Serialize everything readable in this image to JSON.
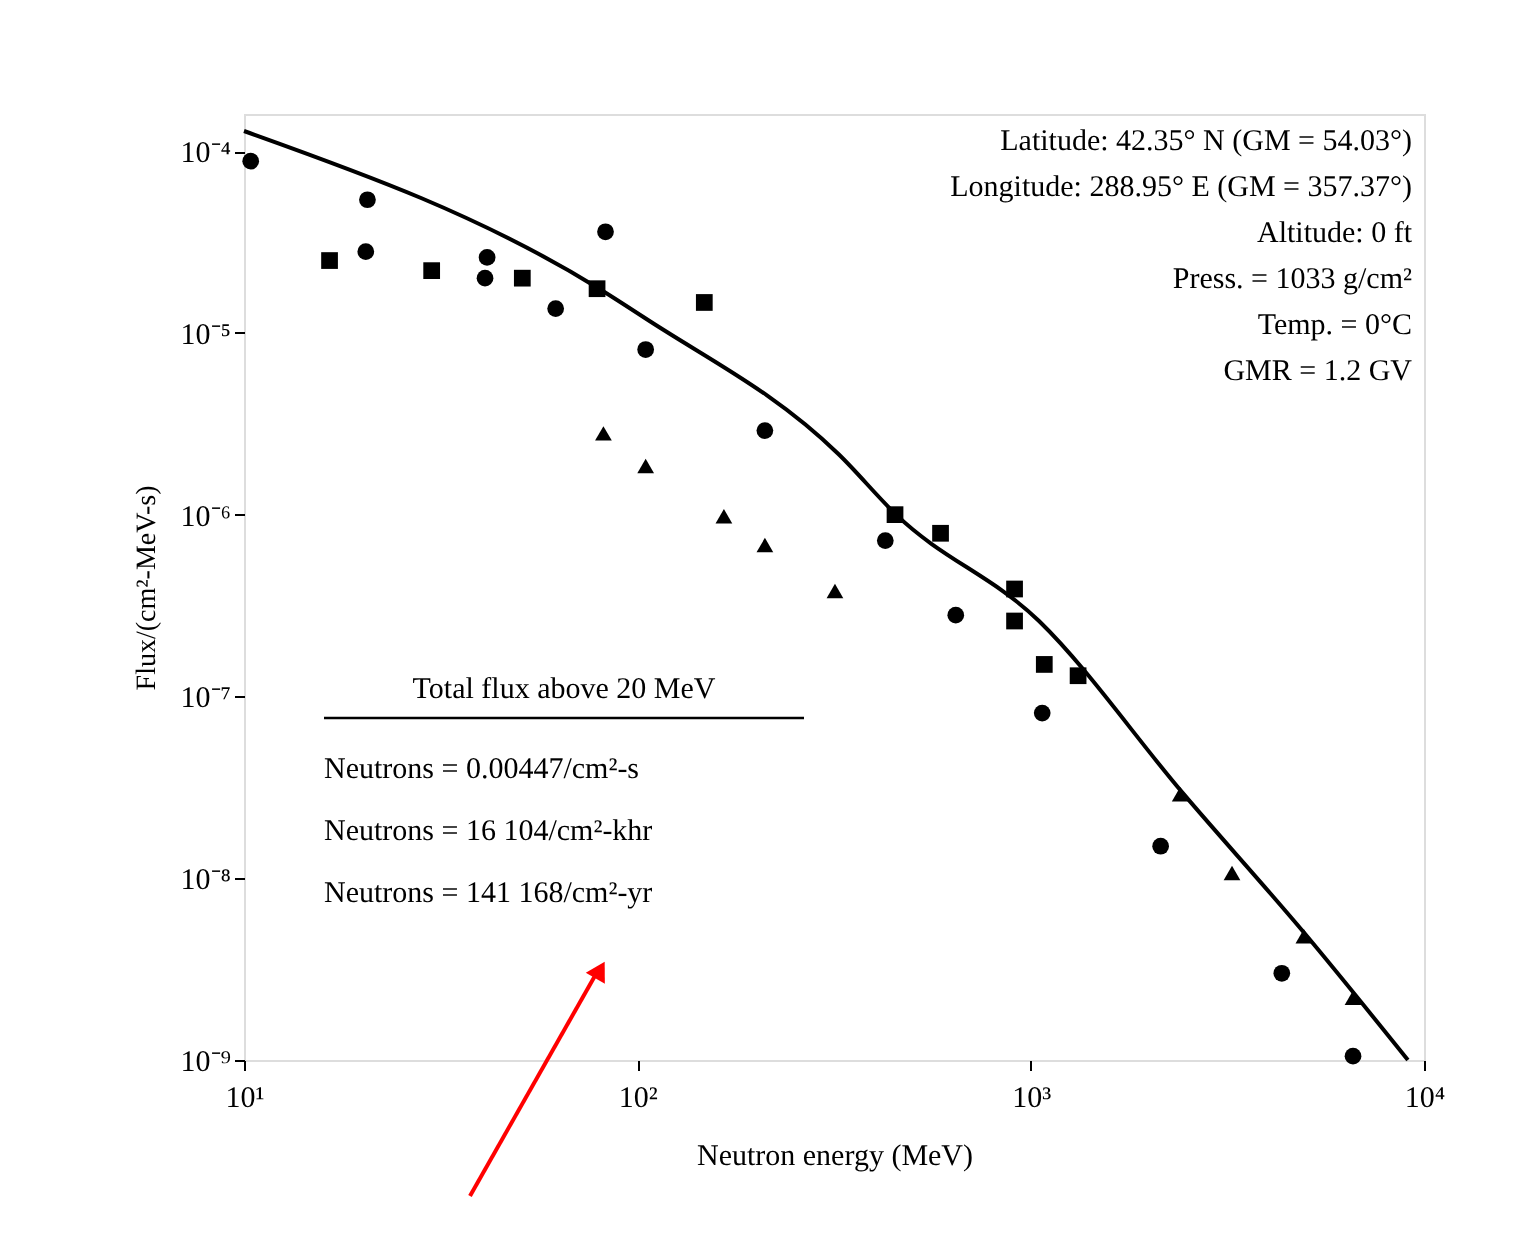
{
  "chart_data": {
    "type": "scatter",
    "xlabel": "Neutron energy (MeV)",
    "ylabel": "Flux/(cm²-MeV-s)",
    "log": "xy",
    "xlim": [
      10,
      10000
    ],
    "ylim": [
      1e-09,
      0.00016
    ],
    "xticks": [
      {
        "value": 10,
        "label": "10¹"
      },
      {
        "value": 100,
        "label": "10²"
      },
      {
        "value": 1000,
        "label": "10³"
      },
      {
        "value": 10000,
        "label": "10⁴"
      }
    ],
    "yticks": [
      {
        "value": 1e-09,
        "label": "10⁻⁹"
      },
      {
        "value": 1e-08,
        "label": "10⁻⁸"
      },
      {
        "value": 1e-07,
        "label": "10⁻⁷"
      },
      {
        "value": 1e-06,
        "label": "10⁻⁶"
      },
      {
        "value": 1e-05,
        "label": "10⁻⁵"
      },
      {
        "value": 0.0001,
        "label": "10⁻⁴"
      }
    ],
    "grid": false,
    "series": [
      {
        "marker": "circle",
        "color": "#000000",
        "x": [
          10.4,
          20.6,
          41,
          62,
          105,
          211,
          427,
          645,
          1070,
          2140,
          4350,
          6600
        ],
        "values": [
          8.8e-05,
          5.4e-05,
          2e-05,
          1.36e-05,
          8.1e-06,
          2.9e-06,
          7.2e-07,
          2.8e-07,
          8.1e-08,
          1.5e-08,
          3e-09,
          1.05e-09
        ]
      },
      {
        "marker": "circle",
        "color": "#000000",
        "x": [
          20.4,
          41.5,
          83
        ],
        "values": [
          2.8e-05,
          2.6e-05,
          3.6e-05
        ]
      },
      {
        "marker": "square",
        "color": "#000000",
        "x": [
          16.5,
          30,
          51,
          79,
          148
        ],
        "values": [
          2.5e-05,
          2.2e-05,
          2e-05,
          1.75e-05,
          1.47e-05
        ]
      },
      {
        "marker": "square",
        "color": "#000000",
        "x": [
          452,
          590,
          910,
          910,
          1083,
          1320
        ],
        "values": [
          1e-06,
          7.9e-07,
          3.9e-07,
          2.6e-07,
          1.5e-07,
          1.3e-07
        ]
      },
      {
        "marker": "triangle",
        "color": "#000000",
        "x": [
          82,
          105,
          166,
          211,
          318
        ],
        "values": [
          2.8e-06,
          1.85e-06,
          9.8e-07,
          6.8e-07,
          3.8e-07
        ]
      },
      {
        "marker": "triangle",
        "color": "#000000",
        "x": [
          2400,
          3250,
          4950,
          6600
        ],
        "values": [
          2.9e-08,
          1.07e-08,
          4.8e-09,
          2.2e-09
        ]
      },
      {
        "type": "line",
        "marker": "none",
        "line_style": "solid",
        "color": "#000000",
        "x": [
          10,
          80,
          105,
          325,
          455,
          1050,
          2450,
          5000,
          9100
        ],
        "values": [
          0.000129,
          1.75e-05,
          1.2e-05,
          2.15e-06,
          1e-06,
          2.6e-07,
          2.9e-08,
          4.9e-09,
          1e-09
        ]
      }
    ],
    "annotations": [
      "Latitude: 42.35° N (GM = 54.03°)",
      "Longitude: 288.95° E (GM = 357.37°)",
      "Altitude: 0 ft",
      "Press. = 1033 g/cm²",
      "Temp. = 0°C",
      "GMR = 1.2 GV",
      "Total flux above 20 MeV",
      "Neutrons = 0.00447/cm²-s",
      "Neutrons = 16 104/cm²-khr",
      "Neutrons = 141 168/cm²-yr"
    ]
  }
}
